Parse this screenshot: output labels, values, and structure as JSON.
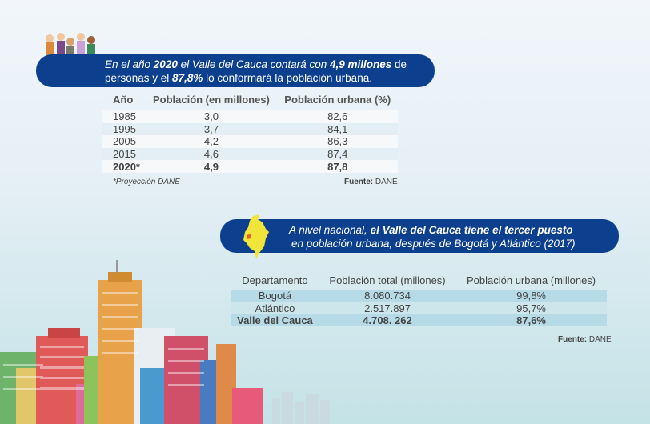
{
  "banner1": {
    "p1": "En el año ",
    "b1": "2020",
    "p2": " el Valle del Cauca  contará con ",
    "b2": "4,9 millones",
    "p3": " de",
    "p4": "personas y el ",
    "b3": "87,8%",
    "p5": " lo conformará la población urbana."
  },
  "table1": {
    "headers": [
      "Año",
      "Población (en millones)",
      "Población urbana (%)"
    ],
    "rows": [
      [
        "1985",
        "3,0",
        "82,6"
      ],
      [
        "1995",
        "3,7",
        "84,1"
      ],
      [
        "2005",
        "4,2",
        "86,3"
      ],
      [
        "2015",
        "4,6",
        "87,4"
      ],
      [
        "2020*",
        "4,9",
        "87,8"
      ]
    ],
    "footnote": "*Proyección DANE",
    "source_label": "Fuente:",
    "source": " DANE"
  },
  "banner2": {
    "p1": "A nivel nacional, ",
    "b1": "el Valle del Cauca tiene el tercer puesto",
    "p2": "en población urbana, después de Bogotá y Atlántico (2017)"
  },
  "table2": {
    "headers": [
      "Departamento",
      "Población total (millones)",
      "Población urbana (millones)"
    ],
    "rows": [
      [
        "Bogotá",
        "8.080.734",
        "99,8%"
      ],
      [
        "Atlántico",
        "2.517.897",
        "95,7%"
      ],
      [
        "Valle del Cauca",
        "4.708. 262",
        "87,6%"
      ]
    ],
    "source_label": "Fuente:",
    "source": " DANE"
  },
  "colors": {
    "banner": "#0d3f8f",
    "map": "#f2e53a",
    "highlight": "#e8622c"
  }
}
